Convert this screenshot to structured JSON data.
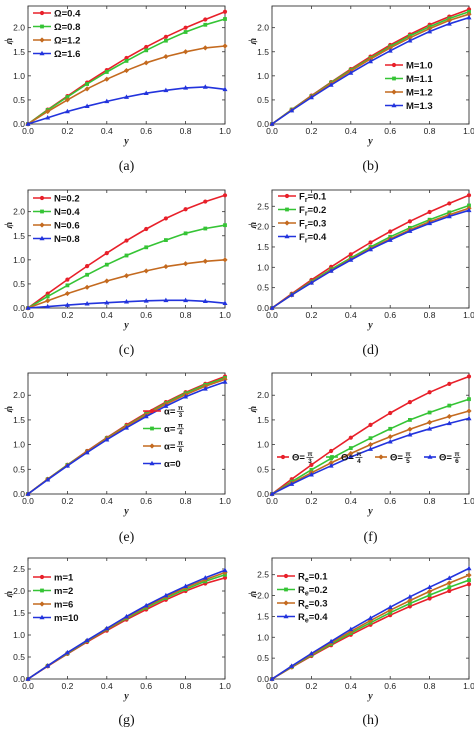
{
  "palette": [
    "#e8202a",
    "#35c435",
    "#c46a1f",
    "#2233dd"
  ],
  "chart_data": [
    {
      "panel": "(a)",
      "type": "line",
      "xlabel": "y",
      "ylabel": "ψ",
      "xlim": [
        0,
        1
      ],
      "ylim": [
        0,
        2.45
      ],
      "xticks": [
        "0.0",
        "0.2",
        "0.4",
        "0.6",
        "0.8",
        "1.0"
      ],
      "yticks": [
        "0.0",
        "0.5",
        "1.0",
        "1.5",
        "2.0"
      ],
      "x": [
        0,
        0.1,
        0.2,
        0.3,
        0.4,
        0.5,
        0.6,
        0.7,
        0.8,
        0.9,
        1.0
      ],
      "series": [
        {
          "name": "Ω=0.4",
          "values": [
            0,
            0.3,
            0.58,
            0.86,
            1.12,
            1.37,
            1.6,
            1.81,
            2.0,
            2.17,
            2.33
          ]
        },
        {
          "name": "Ω=0.8",
          "values": [
            0,
            0.29,
            0.56,
            0.83,
            1.08,
            1.31,
            1.53,
            1.73,
            1.91,
            2.06,
            2.18
          ]
        },
        {
          "name": "Ω=1.2",
          "values": [
            0,
            0.26,
            0.5,
            0.73,
            0.93,
            1.11,
            1.27,
            1.4,
            1.5,
            1.58,
            1.62
          ]
        },
        {
          "name": "Ω=1.6",
          "values": [
            0,
            0.13,
            0.26,
            0.37,
            0.47,
            0.56,
            0.64,
            0.7,
            0.75,
            0.77,
            0.72
          ]
        }
      ]
    },
    {
      "panel": "(b)",
      "type": "line",
      "xlabel": "y",
      "ylabel": "ψ",
      "xlim": [
        0,
        1
      ],
      "ylim": [
        0,
        2.45
      ],
      "xticks": [
        "0.0",
        "0.2",
        "0.4",
        "0.6",
        "0.8",
        "1.0"
      ],
      "yticks": [
        "0.0",
        "0.5",
        "1.0",
        "1.5",
        "2.0"
      ],
      "x": [
        0,
        0.1,
        0.2,
        0.3,
        0.4,
        0.5,
        0.6,
        0.7,
        0.8,
        0.9,
        1.0
      ],
      "series": [
        {
          "name": "M=1.0",
          "values": [
            0,
            0.3,
            0.59,
            0.87,
            1.14,
            1.4,
            1.64,
            1.86,
            2.06,
            2.23,
            2.38
          ]
        },
        {
          "name": "M=1.1",
          "values": [
            0,
            0.3,
            0.58,
            0.86,
            1.12,
            1.37,
            1.61,
            1.83,
            2.02,
            2.19,
            2.33
          ]
        },
        {
          "name": "M=1.2",
          "values": [
            0,
            0.29,
            0.57,
            0.84,
            1.1,
            1.35,
            1.58,
            1.79,
            1.98,
            2.15,
            2.28
          ]
        },
        {
          "name": "M=1.3",
          "values": [
            0,
            0.28,
            0.55,
            0.81,
            1.06,
            1.3,
            1.52,
            1.73,
            1.92,
            2.08,
            2.21
          ]
        }
      ]
    },
    {
      "panel": "(c)",
      "type": "line",
      "xlabel": "y",
      "ylabel": "ψ",
      "xlim": [
        0,
        1
      ],
      "ylim": [
        0,
        2.45
      ],
      "xticks": [
        "0.0",
        "0.2",
        "0.4",
        "0.6",
        "0.8",
        "1.0"
      ],
      "yticks": [
        "0.0",
        "0.5",
        "1.0",
        "1.5",
        "2.0"
      ],
      "x": [
        0,
        0.1,
        0.2,
        0.3,
        0.4,
        0.5,
        0.6,
        0.7,
        0.8,
        0.9,
        1.0
      ],
      "series": [
        {
          "name": "N=0.2",
          "values": [
            0,
            0.3,
            0.59,
            0.87,
            1.14,
            1.4,
            1.64,
            1.86,
            2.05,
            2.21,
            2.34
          ]
        },
        {
          "name": "N=0.4",
          "values": [
            0,
            0.24,
            0.47,
            0.69,
            0.9,
            1.09,
            1.26,
            1.41,
            1.55,
            1.65,
            1.72
          ]
        },
        {
          "name": "N=0.6",
          "values": [
            0,
            0.15,
            0.3,
            0.43,
            0.56,
            0.67,
            0.77,
            0.86,
            0.92,
            0.97,
            1.0
          ]
        },
        {
          "name": "N=0.8",
          "values": [
            0,
            0.03,
            0.06,
            0.09,
            0.11,
            0.13,
            0.15,
            0.16,
            0.16,
            0.14,
            0.1
          ]
        }
      ]
    },
    {
      "panel": "(d)",
      "type": "line",
      "xlabel": "y",
      "ylabel": "ψ",
      "xlim": [
        0,
        1
      ],
      "ylim": [
        0,
        2.9
      ],
      "xticks": [
        "0.0",
        "0.2",
        "0.4",
        "0.6",
        "0.8",
        "1.0"
      ],
      "yticks": [
        "0.0",
        "0.5",
        "1.0",
        "1.5",
        "2.0",
        "2.5"
      ],
      "x": [
        0,
        0.1,
        0.2,
        0.3,
        0.4,
        0.5,
        0.6,
        0.7,
        0.8,
        0.9,
        1.0
      ],
      "series": [
        {
          "name": "Fr=0.1",
          "values": [
            0,
            0.35,
            0.69,
            1.01,
            1.32,
            1.61,
            1.88,
            2.13,
            2.36,
            2.57,
            2.77
          ]
        },
        {
          "name": "Fr=0.2",
          "values": [
            0,
            0.33,
            0.65,
            0.95,
            1.23,
            1.5,
            1.75,
            1.97,
            2.17,
            2.35,
            2.52
          ]
        },
        {
          "name": "Fr=0.3",
          "values": [
            0,
            0.32,
            0.63,
            0.92,
            1.2,
            1.46,
            1.7,
            1.92,
            2.12,
            2.29,
            2.45
          ]
        },
        {
          "name": "Fr=0.4",
          "values": [
            0,
            0.32,
            0.62,
            0.91,
            1.18,
            1.44,
            1.67,
            1.89,
            2.08,
            2.25,
            2.4
          ]
        }
      ]
    },
    {
      "panel": "(e)",
      "type": "line",
      "xlabel": "y",
      "ylabel": "ψ",
      "xlim": [
        0,
        1
      ],
      "ylim": [
        0,
        2.45
      ],
      "xticks": [
        "0.0",
        "0.2",
        "0.4",
        "0.6",
        "0.8",
        "1.0"
      ],
      "yticks": [
        "0.0",
        "0.5",
        "1.0",
        "1.5",
        "2.0"
      ],
      "x": [
        0,
        0.1,
        0.2,
        0.3,
        0.4,
        0.5,
        0.6,
        0.7,
        0.8,
        0.9,
        1.0
      ],
      "series": [
        {
          "name": "α=π/3",
          "values": [
            0,
            0.3,
            0.59,
            0.87,
            1.14,
            1.4,
            1.64,
            1.86,
            2.06,
            2.23,
            2.38
          ]
        },
        {
          "name": "α=π/4",
          "values": [
            0,
            0.3,
            0.59,
            0.86,
            1.13,
            1.38,
            1.62,
            1.84,
            2.04,
            2.21,
            2.35
          ]
        },
        {
          "name": "α=π/6",
          "values": [
            0,
            0.3,
            0.58,
            0.86,
            1.12,
            1.37,
            1.6,
            1.82,
            2.01,
            2.18,
            2.32
          ]
        },
        {
          "name": "α=0",
          "values": [
            0,
            0.29,
            0.57,
            0.84,
            1.1,
            1.34,
            1.57,
            1.78,
            1.97,
            2.13,
            2.27
          ]
        }
      ]
    },
    {
      "panel": "(f)",
      "type": "line",
      "xlabel": "y",
      "ylabel": "ψ",
      "xlim": [
        0,
        1
      ],
      "ylim": [
        0,
        2.45
      ],
      "xticks": [
        "0.0",
        "0.2",
        "0.4",
        "0.6",
        "0.8",
        "1.0"
      ],
      "yticks": [
        "0.0",
        "0.5",
        "1.0",
        "1.5",
        "2.0"
      ],
      "x": [
        0,
        0.1,
        0.2,
        0.3,
        0.4,
        0.5,
        0.6,
        0.7,
        0.8,
        0.9,
        1.0
      ],
      "series": [
        {
          "name": "Θ=π/3",
          "values": [
            0,
            0.3,
            0.59,
            0.87,
            1.14,
            1.4,
            1.64,
            1.86,
            2.06,
            2.23,
            2.38
          ]
        },
        {
          "name": "Θ=π/4",
          "values": [
            0,
            0.25,
            0.49,
            0.72,
            0.93,
            1.13,
            1.32,
            1.5,
            1.65,
            1.79,
            1.92
          ]
        },
        {
          "name": "Θ=π/5",
          "values": [
            0,
            0.22,
            0.43,
            0.63,
            0.82,
            1.0,
            1.16,
            1.31,
            1.45,
            1.57,
            1.68
          ]
        },
        {
          "name": "Θ=π/6",
          "values": [
            0,
            0.2,
            0.39,
            0.57,
            0.75,
            0.91,
            1.06,
            1.2,
            1.32,
            1.43,
            1.53
          ]
        }
      ]
    },
    {
      "panel": "(g)",
      "type": "line",
      "xlabel": "y",
      "ylabel": "ψ",
      "xlim": [
        0,
        1
      ],
      "ylim": [
        0,
        2.75
      ],
      "xticks": [
        "0.0",
        "0.2",
        "0.4",
        "0.6",
        "0.8",
        "1.0"
      ],
      "yticks": [
        "0.0",
        "0.5",
        "1.0",
        "1.5",
        "2.0",
        "2.5"
      ],
      "x": [
        0,
        0.1,
        0.2,
        0.3,
        0.4,
        0.5,
        0.6,
        0.7,
        0.8,
        0.9,
        1.0
      ],
      "series": [
        {
          "name": "m=1",
          "values": [
            0,
            0.29,
            0.57,
            0.84,
            1.1,
            1.35,
            1.58,
            1.8,
            2.0,
            2.17,
            2.3
          ]
        },
        {
          "name": "m=2",
          "values": [
            0,
            0.3,
            0.58,
            0.86,
            1.13,
            1.38,
            1.62,
            1.84,
            2.04,
            2.22,
            2.37
          ]
        },
        {
          "name": "m=6",
          "values": [
            0,
            0.3,
            0.59,
            0.87,
            1.14,
            1.4,
            1.65,
            1.87,
            2.08,
            2.26,
            2.42
          ]
        },
        {
          "name": "m=10",
          "values": [
            0,
            0.3,
            0.6,
            0.88,
            1.15,
            1.42,
            1.67,
            1.9,
            2.11,
            2.3,
            2.47
          ]
        }
      ]
    },
    {
      "panel": "(h)",
      "type": "line",
      "xlabel": "y",
      "ylabel": "ψ",
      "xlim": [
        0,
        1
      ],
      "ylim": [
        0,
        2.9
      ],
      "xticks": [
        "0.0",
        "0.2",
        "0.4",
        "0.6",
        "0.8",
        "1.0"
      ],
      "yticks": [
        "0.0",
        "0.5",
        "1.0",
        "1.5",
        "2.0",
        "2.5"
      ],
      "x": [
        0,
        0.1,
        0.2,
        0.3,
        0.4,
        0.5,
        0.6,
        0.7,
        0.8,
        0.9,
        1.0
      ],
      "series": [
        {
          "name": "Re=0.1",
          "values": [
            0,
            0.28,
            0.55,
            0.81,
            1.06,
            1.3,
            1.53,
            1.74,
            1.93,
            2.11,
            2.27
          ]
        },
        {
          "name": "Re=0.2",
          "values": [
            0,
            0.29,
            0.57,
            0.84,
            1.1,
            1.35,
            1.59,
            1.81,
            2.01,
            2.2,
            2.37
          ]
        },
        {
          "name": "Re=0.3",
          "values": [
            0,
            0.3,
            0.59,
            0.87,
            1.14,
            1.4,
            1.65,
            1.88,
            2.1,
            2.3,
            2.49
          ]
        },
        {
          "name": "Re=0.4",
          "values": [
            0,
            0.31,
            0.61,
            0.9,
            1.19,
            1.46,
            1.72,
            1.97,
            2.2,
            2.42,
            2.65
          ]
        }
      ]
    }
  ]
}
